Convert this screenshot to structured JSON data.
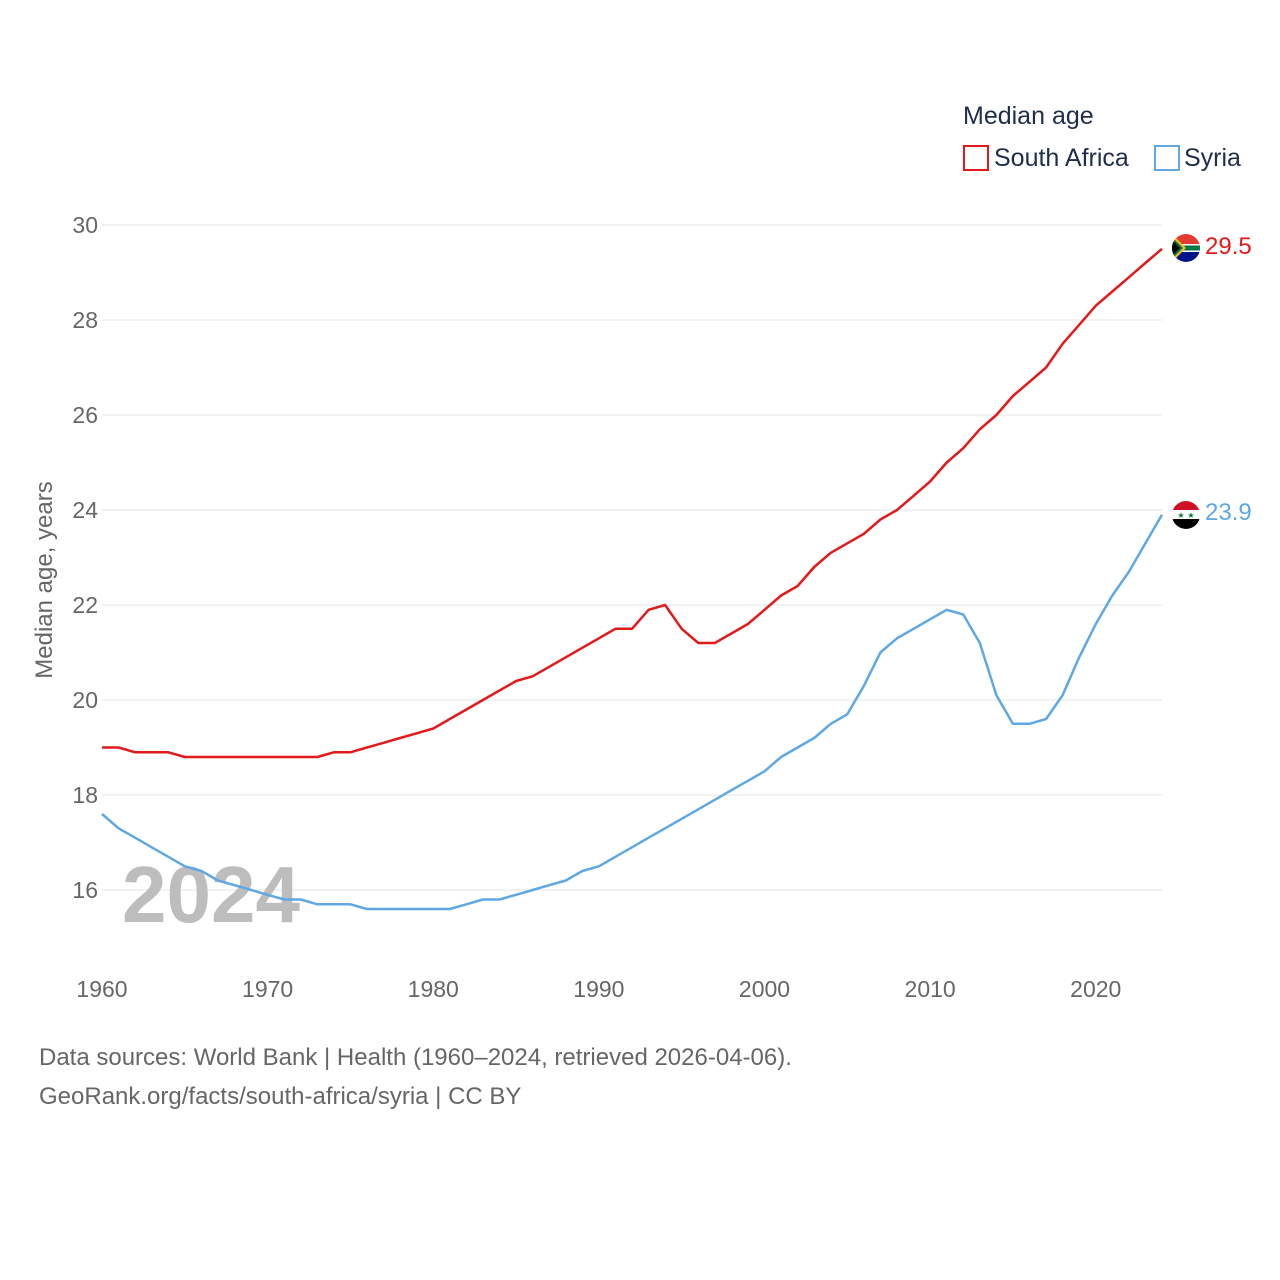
{
  "chart_data": {
    "type": "line",
    "legend_title": "Median age",
    "ylabel": "Median age, years",
    "xlim": [
      1960,
      2024
    ],
    "ylim": [
      15.2,
      30
    ],
    "yticks": [
      16,
      18,
      20,
      22,
      24,
      26,
      28,
      30
    ],
    "xticks": [
      1960,
      1970,
      1980,
      1990,
      2000,
      2010,
      2020
    ],
    "year_label": "2024",
    "legend_placement": "top-right",
    "x": [
      1960,
      1961,
      1962,
      1963,
      1964,
      1965,
      1966,
      1967,
      1968,
      1969,
      1970,
      1971,
      1972,
      1973,
      1974,
      1975,
      1976,
      1977,
      1978,
      1979,
      1980,
      1981,
      1982,
      1983,
      1984,
      1985,
      1986,
      1987,
      1988,
      1989,
      1990,
      1991,
      1992,
      1993,
      1994,
      1995,
      1996,
      1997,
      1998,
      1999,
      2000,
      2001,
      2002,
      2003,
      2004,
      2005,
      2006,
      2007,
      2008,
      2009,
      2010,
      2011,
      2012,
      2013,
      2014,
      2015,
      2016,
      2017,
      2018,
      2019,
      2020,
      2021,
      2022,
      2023,
      2024
    ],
    "series": [
      {
        "name": "South Africa",
        "color": "#e31a1c",
        "end_label": "29.5",
        "values": [
          19.0,
          19.0,
          18.9,
          18.9,
          18.9,
          18.8,
          18.8,
          18.8,
          18.8,
          18.8,
          18.8,
          18.8,
          18.8,
          18.8,
          18.9,
          18.9,
          19.0,
          19.1,
          19.2,
          19.3,
          19.4,
          19.6,
          19.8,
          20.0,
          20.2,
          20.4,
          20.5,
          20.7,
          20.9,
          21.1,
          21.3,
          21.5,
          21.5,
          21.9,
          22.0,
          21.5,
          21.2,
          21.2,
          21.4,
          21.6,
          21.9,
          22.2,
          22.4,
          22.8,
          23.1,
          23.3,
          23.5,
          23.8,
          24.0,
          24.3,
          24.6,
          25.0,
          25.3,
          25.7,
          26.0,
          26.4,
          26.7,
          27.0,
          27.5,
          27.9,
          28.3,
          28.6,
          28.9,
          29.2,
          29.5
        ]
      },
      {
        "name": "Syria",
        "color": "#5fa8e3",
        "end_label": "23.9",
        "values": [
          17.6,
          17.3,
          17.1,
          16.9,
          16.7,
          16.5,
          16.4,
          16.2,
          16.1,
          16.0,
          15.9,
          15.8,
          15.8,
          15.7,
          15.7,
          15.7,
          15.6,
          15.6,
          15.6,
          15.6,
          15.6,
          15.6,
          15.7,
          15.8,
          15.8,
          15.9,
          16.0,
          16.1,
          16.2,
          16.4,
          16.5,
          16.7,
          16.9,
          17.1,
          17.3,
          17.5,
          17.7,
          17.9,
          18.1,
          18.3,
          18.5,
          18.8,
          19.0,
          19.2,
          19.5,
          19.7,
          20.3,
          21.0,
          21.3,
          21.5,
          21.7,
          21.9,
          21.8,
          21.2,
          20.1,
          19.5,
          19.5,
          19.6,
          20.1,
          20.9,
          21.6,
          22.2,
          22.7,
          23.3,
          23.9
        ]
      }
    ]
  },
  "footer": {
    "sources": "Data sources: World Bank | Health (1960–2024, retrieved 2026-04-06).",
    "link": "GeoRank.org/facts/south-africa/syria | CC BY"
  }
}
